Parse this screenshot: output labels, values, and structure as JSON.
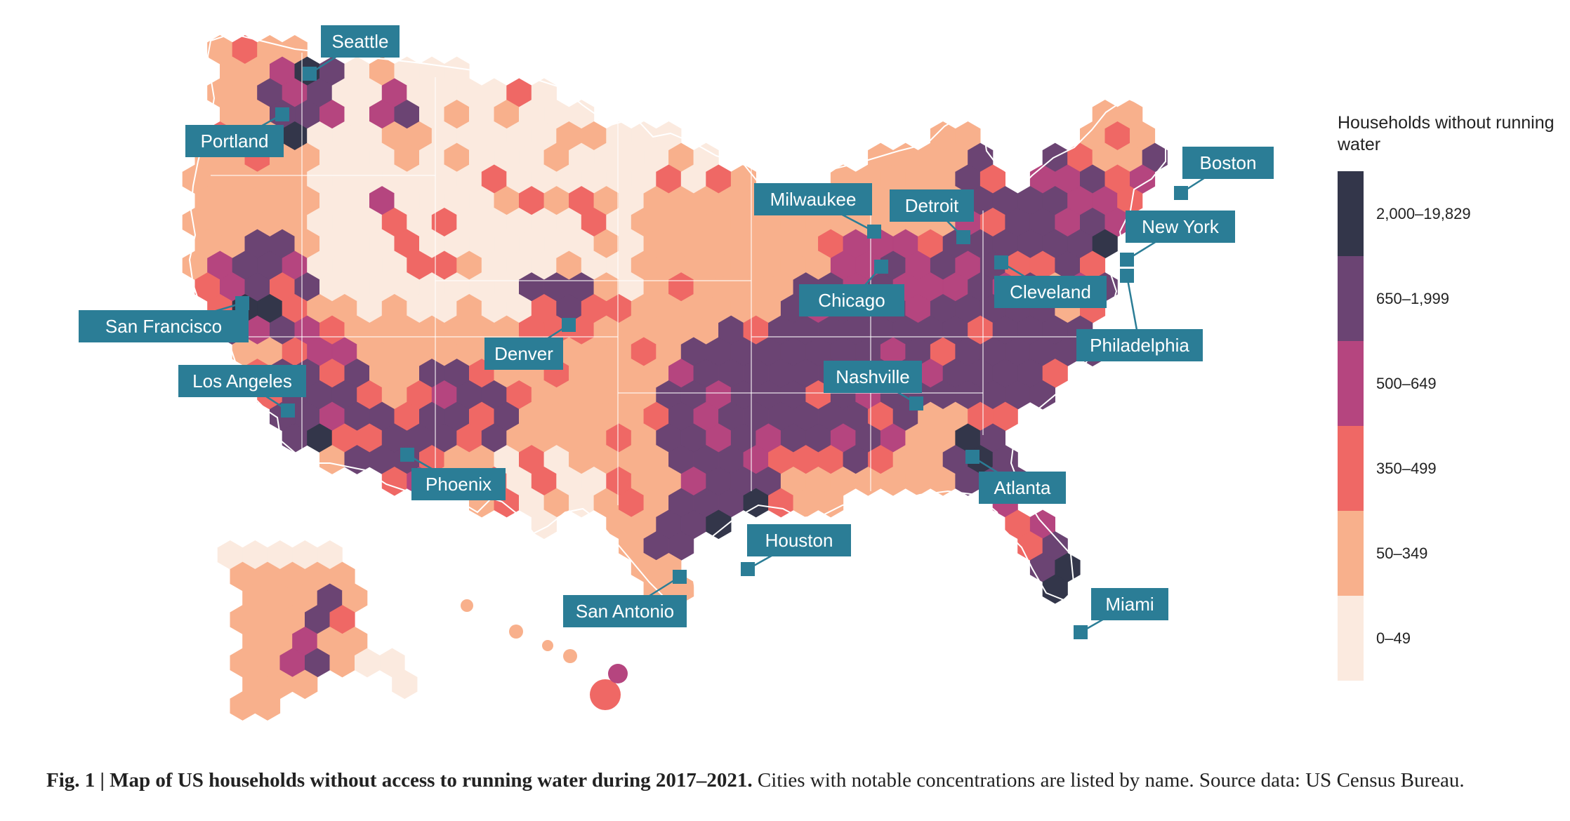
{
  "legend": {
    "title": "Households without running water",
    "classes": [
      {
        "label": "2,000–19,829",
        "color": "#33364a"
      },
      {
        "label": "650–1,999",
        "color": "#6b4473"
      },
      {
        "label": "500–649",
        "color": "#b5457f"
      },
      {
        "label": "350–499",
        "color": "#ef6865"
      },
      {
        "label": "50–349",
        "color": "#f8b08c"
      },
      {
        "label": "0–49",
        "color": "#fbeadf"
      }
    ]
  },
  "cities": [
    "Seattle",
    "Portland",
    "San Francisco",
    "Los Angeles",
    "Phoenix",
    "Denver",
    "San Antonio",
    "Houston",
    "Nashville",
    "Chicago",
    "Milwaukee",
    "Detroit",
    "Cleveland",
    "Atlanta",
    "Miami",
    "Philadelphia",
    "New York",
    "Boston"
  ],
  "caption": {
    "bold": "Fig. 1 | Map of US households without access to running water during 2017–2021.",
    "text": " Cities with notable concentrations are listed by name. Source data: US Census Bureau."
  }
}
